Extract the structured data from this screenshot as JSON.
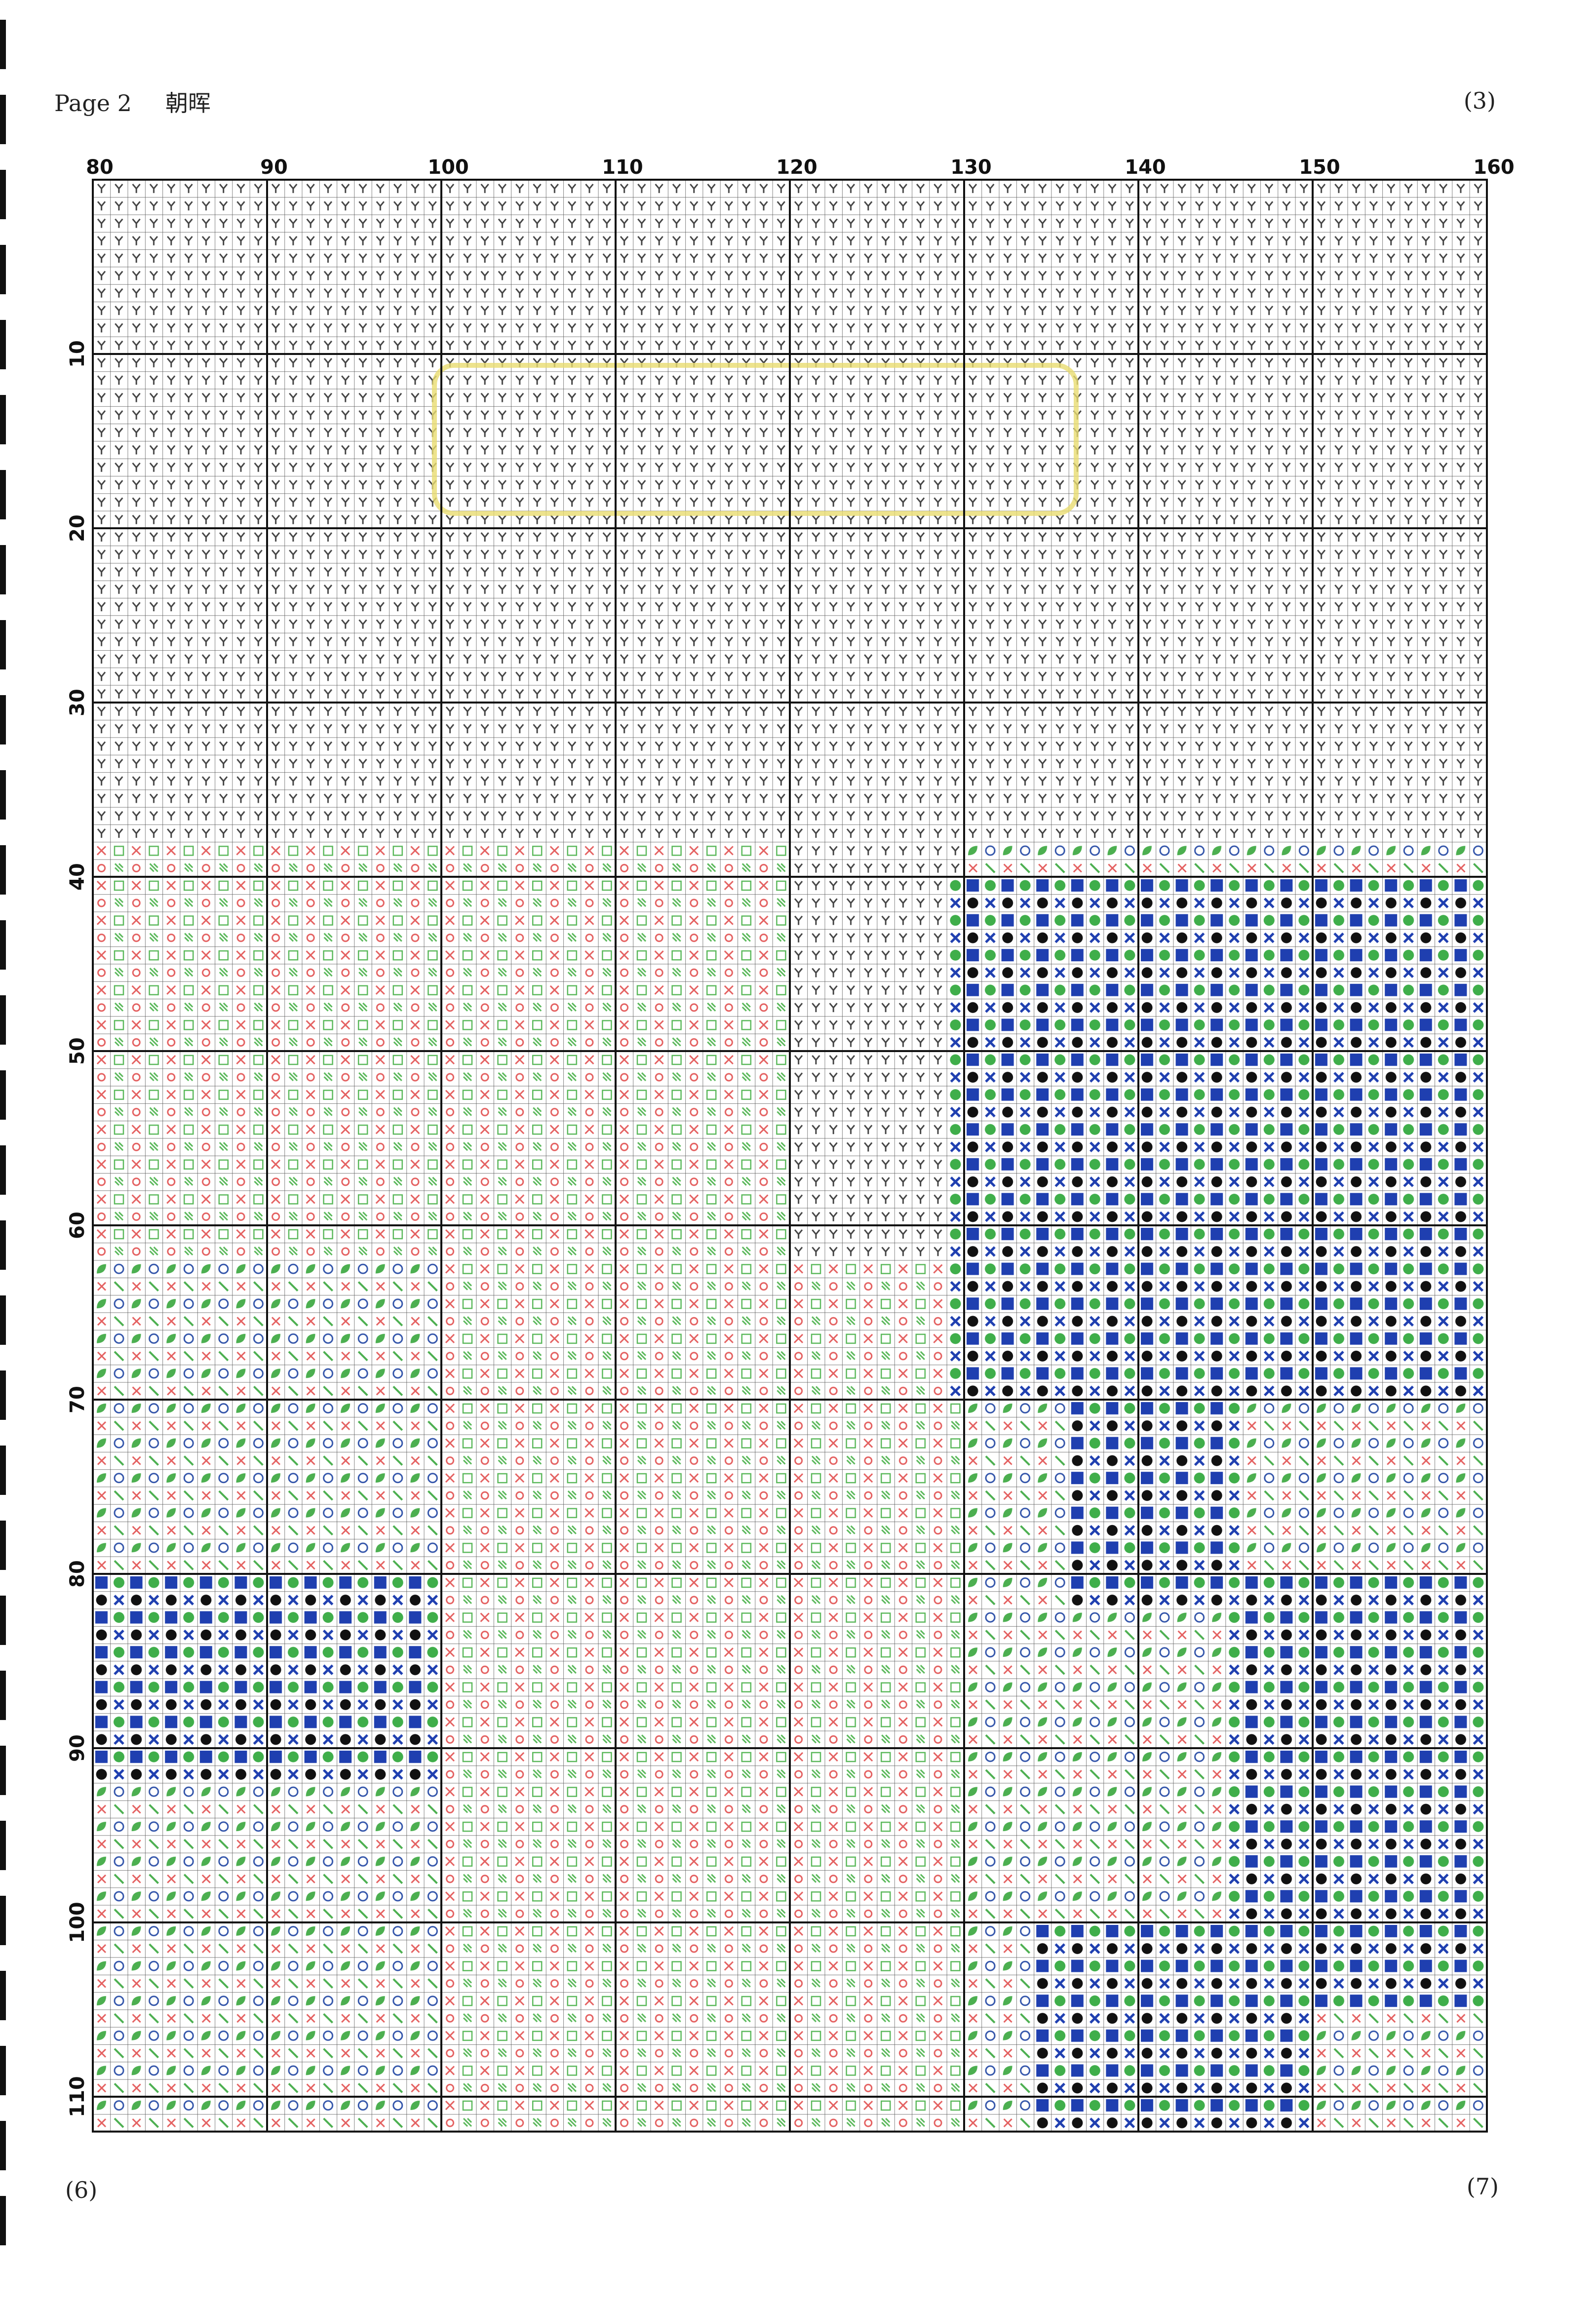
{
  "header": {
    "page": "Page 2",
    "title": "朝晖",
    "page_number": "(3)"
  },
  "footer": {
    "left": "(6)",
    "right": "(7)"
  },
  "grid": {
    "column_labels": [
      80,
      90,
      100,
      110,
      120,
      130,
      140,
      150,
      160
    ],
    "row_labels": [
      10,
      20,
      30,
      40,
      50,
      60,
      70,
      80,
      90,
      100,
      110
    ]
  }
}
